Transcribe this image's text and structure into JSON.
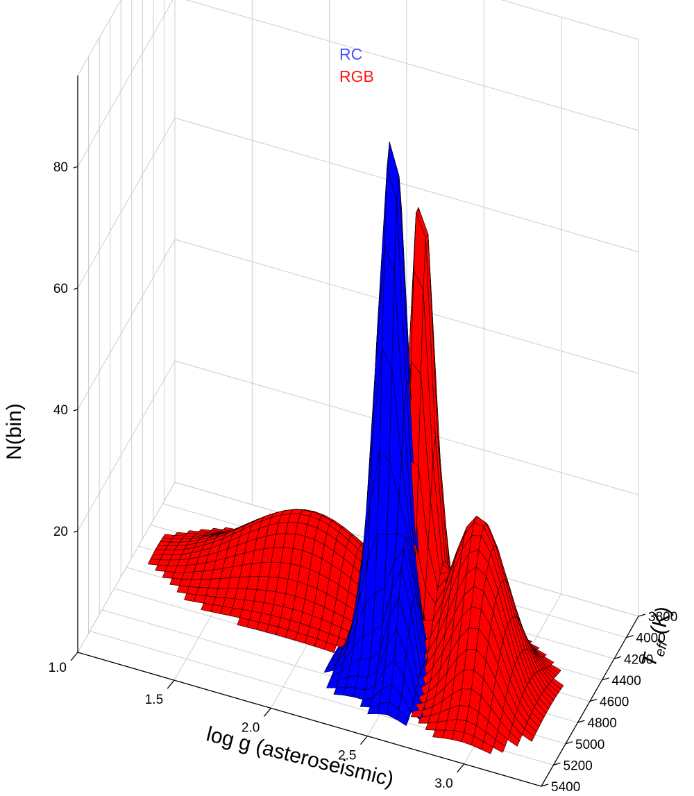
{
  "chart_data": {
    "type": "surface3d",
    "title": "",
    "zlabel": "N(bin)",
    "xlabel": "log g (asteroseismic)",
    "ylabel": {
      "main": "T",
      "sub": "eff",
      "unit": " (K)"
    },
    "z_ticks": [
      "20",
      "40",
      "60",
      "80"
    ],
    "zlim": [
      0,
      80
    ],
    "x_ticks": [
      "1.0",
      "1.5",
      "2.0",
      "2.5",
      "3.0"
    ],
    "xlim": [
      1.0,
      3.4
    ],
    "y_ticks": [
      "3800",
      "4000",
      "4200",
      "4400",
      "4600",
      "4800",
      "5000",
      "5200",
      "5400"
    ],
    "ylim": [
      3800,
      5400
    ],
    "grid": true,
    "legend_position": "top-center",
    "series": [
      {
        "name": "RC",
        "color": "#0000ff",
        "peaks": [
          {
            "logg": 2.42,
            "teff": 4720,
            "n": 84,
            "width_logg": 0.07,
            "width_teff": 110
          },
          {
            "logg": 2.55,
            "teff": 4950,
            "n": 22,
            "width_logg": 0.06,
            "width_teff": 120
          },
          {
            "logg": 2.35,
            "teff": 4870,
            "n": 10,
            "width_logg": 0.08,
            "width_teff": 130
          }
        ]
      },
      {
        "name": "RGB",
        "color": "#ff0000",
        "peaks": [
          {
            "logg": 2.52,
            "teff": 4580,
            "n": 74,
            "width_logg": 0.06,
            "width_teff": 110
          },
          {
            "logg": 2.85,
            "teff": 4700,
            "n": 25,
            "width_logg": 0.15,
            "width_teff": 160
          },
          {
            "logg": 1.9,
            "teff": 4420,
            "n": 14,
            "width_logg": 0.35,
            "width_teff": 180
          },
          {
            "logg": 2.95,
            "teff": 4950,
            "n": 12,
            "width_logg": 0.12,
            "width_teff": 150
          }
        ]
      }
    ]
  },
  "colors": {
    "rc": "#0000ff",
    "rgb": "#ff0000",
    "grid": "#cccccc",
    "axis": "#000000"
  }
}
